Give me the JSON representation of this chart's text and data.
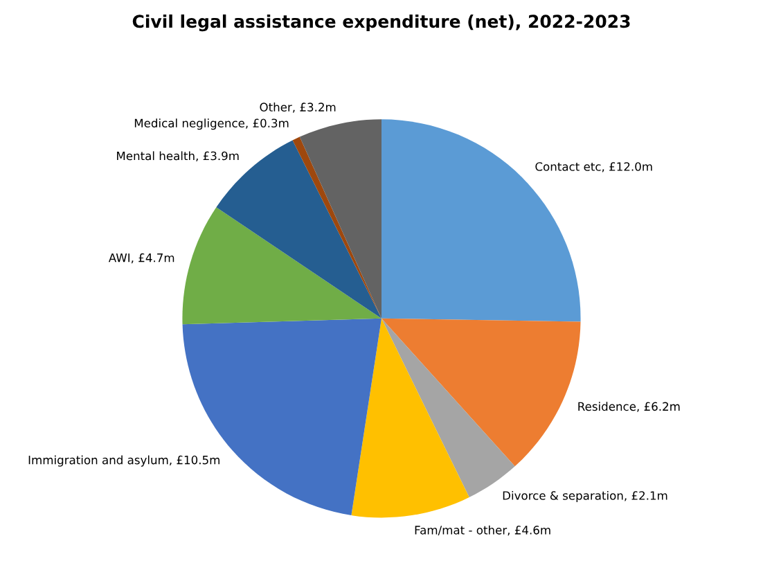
{
  "chart_data": {
    "type": "pie",
    "title": "Civil legal assistance expenditure (net), 2022-2023",
    "categories": [
      "Contact etc",
      "Residence",
      "Divorce & separation",
      "Fam/mat - other",
      "Immigration and asylum",
      "AWI",
      "Mental health",
      "Medical negligence",
      "Other"
    ],
    "values": [
      12.0,
      6.2,
      2.1,
      4.6,
      10.5,
      4.7,
      3.9,
      0.3,
      3.2
    ],
    "value_labels": [
      "£12.0m",
      "£6.2m",
      "£2.1m",
      "£4.6m",
      "£10.5m",
      "£4.7m",
      "£3.9m",
      "£0.3m",
      "£3.2m"
    ],
    "colors": [
      "#5b9bd5",
      "#ed7d31",
      "#a5a5a5",
      "#ffc000",
      "#4472c4",
      "#70ad47",
      "#255e91",
      "#9e480e",
      "#636363"
    ],
    "legend": false
  }
}
